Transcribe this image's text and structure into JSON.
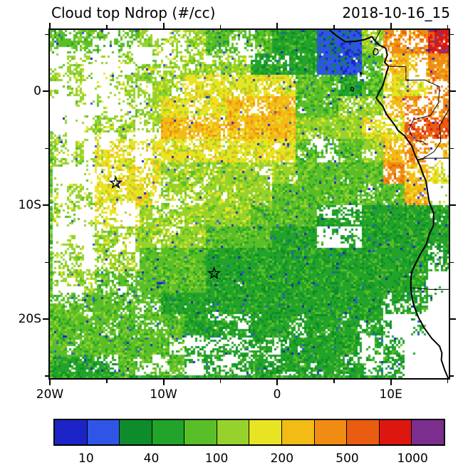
{
  "header": {
    "title": "Cloud top Ndrop (#/cc)",
    "timestamp": "2018-10-16_15"
  },
  "chart_data": {
    "type": "heatmap",
    "title": "Cloud top Ndrop (#/cc)",
    "timestamp": "2018-10-16_15",
    "units": "#/cc",
    "lon_range": [
      -20,
      15.1
    ],
    "lat_range": [
      -25.2,
      5.4
    ],
    "x_ticks": {
      "values": [
        -20,
        -10,
        0,
        10
      ],
      "labels": [
        "20W",
        "10W",
        "0",
        "10E"
      ],
      "minor": [
        -15,
        -5,
        5,
        15
      ]
    },
    "y_ticks": {
      "values": [
        0,
        -10,
        -20
      ],
      "labels": [
        "0",
        "10S",
        "20S"
      ],
      "minor": [
        5,
        -5,
        -15,
        -25
      ]
    },
    "color_levels": [
      10,
      20,
      40,
      70,
      100,
      150,
      200,
      300,
      500,
      700,
      1000
    ],
    "colors": [
      "#1c24c8",
      "#2e55e6",
      "#0d8c2b",
      "#22a32a",
      "#5abe28",
      "#97d22c",
      "#e8e424",
      "#f2bb16",
      "#f08c14",
      "#ea5c10",
      "#dd1610",
      "#7b2e8e"
    ],
    "colorbar_labels": [
      "10",
      "40",
      "100",
      "200",
      "500",
      "1000"
    ],
    "colorbar_label_positions": [
      1,
      3,
      5,
      7,
      9,
      11
    ],
    "grid": {
      "cols": 18,
      "rows": 16,
      "values": [
        [
          90,
          90,
          90,
          90,
          100,
          100,
          100,
          80,
          80,
          80,
          60,
          60,
          15,
          15,
          100,
          300,
          400,
          800
        ],
        [
          100,
          100,
          100,
          120,
          120,
          120,
          100,
          100,
          100,
          60,
          60,
          60,
          15,
          15,
          70,
          250,
          250,
          450
        ],
        [
          100,
          100,
          100,
          130,
          130,
          130,
          150,
          150,
          150,
          150,
          150,
          70,
          70,
          40,
          70,
          150,
          150,
          350
        ],
        [
          100,
          100,
          120,
          120,
          120,
          170,
          170,
          170,
          200,
          200,
          200,
          80,
          80,
          100,
          100,
          200,
          350,
          450
        ],
        [
          110,
          110,
          130,
          130,
          130,
          200,
          200,
          200,
          220,
          220,
          220,
          100,
          100,
          100,
          180,
          180,
          600,
          500
        ],
        [
          110,
          110,
          150,
          150,
          150,
          180,
          180,
          180,
          150,
          150,
          150,
          80,
          80,
          80,
          120,
          250,
          400,
          250
        ],
        [
          120,
          120,
          150,
          150,
          150,
          130,
          130,
          130,
          100,
          100,
          100,
          70,
          70,
          70,
          70,
          300,
          200,
          150
        ],
        [
          120,
          120,
          160,
          160,
          160,
          140,
          140,
          100,
          100,
          100,
          70,
          70,
          70,
          70,
          80,
          80,
          200,
          100
        ],
        [
          130,
          130,
          150,
          150,
          110,
          110,
          100,
          100,
          100,
          70,
          70,
          70,
          50,
          50,
          50,
          50,
          50,
          60
        ],
        [
          130,
          130,
          140,
          140,
          100,
          100,
          100,
          70,
          70,
          70,
          50,
          50,
          50,
          50,
          45,
          45,
          45,
          55
        ],
        [
          120,
          120,
          110,
          110,
          80,
          80,
          80,
          60,
          60,
          60,
          45,
          45,
          45,
          45,
          45,
          40,
          40,
          60
        ],
        [
          110,
          110,
          90,
          90,
          70,
          70,
          70,
          55,
          55,
          55,
          45,
          45,
          45,
          45,
          45,
          45,
          50,
          60
        ],
        [
          90,
          90,
          80,
          80,
          80,
          60,
          60,
          60,
          45,
          45,
          45,
          45,
          45,
          45,
          45,
          50,
          50,
          60
        ],
        [
          80,
          80,
          80,
          70,
          70,
          70,
          55,
          55,
          55,
          50,
          50,
          50,
          45,
          45,
          45,
          50,
          50,
          60
        ],
        [
          70,
          70,
          70,
          70,
          70,
          70,
          60,
          60,
          60,
          45,
          45,
          45,
          40,
          40,
          50,
          50,
          60,
          60
        ],
        [
          50,
          60,
          60,
          70,
          70,
          70,
          60,
          60,
          60,
          50,
          50,
          50,
          45,
          45,
          50,
          50,
          60,
          60
        ]
      ],
      "coverage": [
        "444455566688886556",
        "333444555777776556",
        "333555666667766555",
        "224446667777766545",
        "224446667777776666",
        "335556667777476654",
        "335556667778887654",
        "335555577788887763",
        "334466888999659886",
        "335577799999339997",
        "335588899999988995",
        "445588899999998872",
        "556668889999888661",
        "666777865776666331",
        "777666555666774411",
        "766555444555665511"
      ]
    },
    "edge_bands": [
      {
        "edge": "bottom",
        "from_lon": -13,
        "to_lon": 10.5,
        "value": 45
      },
      {
        "edge": "left",
        "from_lat": -25.2,
        "to_lat": -3.5,
        "value": 80
      }
    ],
    "markers": [
      {
        "type": "star",
        "lon": -14.2,
        "lat": -8.05
      },
      {
        "type": "star",
        "lon": -5.55,
        "lat": -16.0
      }
    ],
    "map": {
      "coastline": [
        [
          4.6,
          5.4
        ],
        [
          5.2,
          4.9
        ],
        [
          6.0,
          4.35
        ],
        [
          6.9,
          4.4
        ],
        [
          7.7,
          4.55
        ],
        [
          8.35,
          4.8
        ],
        [
          8.6,
          4.45
        ],
        [
          9.0,
          4.05
        ],
        [
          9.55,
          3.8
        ],
        [
          9.7,
          3.2
        ],
        [
          9.45,
          2.55
        ],
        [
          9.8,
          2.2
        ],
        [
          9.55,
          1.4
        ],
        [
          9.3,
          0.5
        ],
        [
          9.0,
          0.0
        ],
        [
          8.72,
          -0.62
        ],
        [
          9.3,
          -1.3
        ],
        [
          9.6,
          -2.0
        ],
        [
          10.3,
          -2.9
        ],
        [
          10.65,
          -3.45
        ],
        [
          11.2,
          -3.9
        ],
        [
          11.85,
          -4.8
        ],
        [
          12.1,
          -5.5
        ],
        [
          12.35,
          -6.05
        ],
        [
          12.6,
          -6.6
        ],
        [
          12.85,
          -7.3
        ],
        [
          13.1,
          -7.9
        ],
        [
          13.23,
          -8.8
        ],
        [
          13.4,
          -9.8
        ],
        [
          13.78,
          -10.7
        ],
        [
          13.75,
          -11.8
        ],
        [
          13.4,
          -12.5
        ],
        [
          13.15,
          -13.4
        ],
        [
          12.6,
          -14.3
        ],
        [
          12.15,
          -15.2
        ],
        [
          11.82,
          -15.9
        ],
        [
          11.77,
          -16.6
        ],
        [
          11.75,
          -17.25
        ],
        [
          11.9,
          -18.3
        ],
        [
          12.05,
          -18.9
        ],
        [
          12.45,
          -19.9
        ],
        [
          12.95,
          -20.8
        ],
        [
          13.6,
          -21.7
        ],
        [
          14.3,
          -22.4
        ],
        [
          14.5,
          -23.0
        ],
        [
          14.45,
          -23.6
        ],
        [
          14.75,
          -24.5
        ],
        [
          15.05,
          -25.2
        ]
      ],
      "islands": [
        [
          [
            8.45,
            3.45
          ],
          [
            8.6,
            3.78
          ],
          [
            8.85,
            3.68
          ],
          [
            8.9,
            3.4
          ],
          [
            8.7,
            3.2
          ],
          [
            8.5,
            3.25
          ]
        ],
        [
          [
            7.32,
            1.68
          ],
          [
            7.45,
            1.62
          ],
          [
            7.38,
            1.5
          ],
          [
            7.3,
            1.58
          ]
        ],
        [
          [
            6.58,
            0.4
          ],
          [
            6.74,
            0.25
          ],
          [
            6.68,
            0.02
          ],
          [
            6.5,
            0.12
          ],
          [
            6.48,
            0.3
          ]
        ]
      ],
      "borders": [
        [
          [
            8.6,
            4.45
          ],
          [
            8.8,
            4.8
          ],
          [
            9.1,
            5.4
          ]
        ],
        [
          [
            9.8,
            2.2
          ],
          [
            11.33,
            2.17
          ]
        ],
        [
          [
            11.33,
            2.17
          ],
          [
            11.33,
            0.98
          ]
        ],
        [
          [
            11.33,
            0.98
          ],
          [
            13.0,
            1.0
          ],
          [
            14.3,
            0.4
          ],
          [
            14.2,
            -1.0
          ],
          [
            13.5,
            -2.1
          ],
          [
            12.0,
            -2.5
          ],
          [
            11.6,
            -3.3
          ],
          [
            11.85,
            -3.95
          ]
        ],
        [
          [
            15.1,
            -1.6
          ],
          [
            14.3,
            -3.0
          ],
          [
            14.4,
            -4.4
          ],
          [
            13.8,
            -5.3
          ],
          [
            12.9,
            -5.85
          ],
          [
            12.35,
            -6.0
          ]
        ],
        [
          [
            12.3,
            -6.05
          ],
          [
            13.2,
            -5.87
          ],
          [
            15.1,
            -5.87
          ]
        ],
        [
          [
            12.2,
            -4.35
          ],
          [
            12.8,
            -4.4
          ],
          [
            13.1,
            -4.65
          ]
        ],
        [
          [
            11.75,
            -17.25
          ],
          [
            13.5,
            -17.4
          ],
          [
            15.1,
            -17.4
          ]
        ]
      ]
    }
  }
}
